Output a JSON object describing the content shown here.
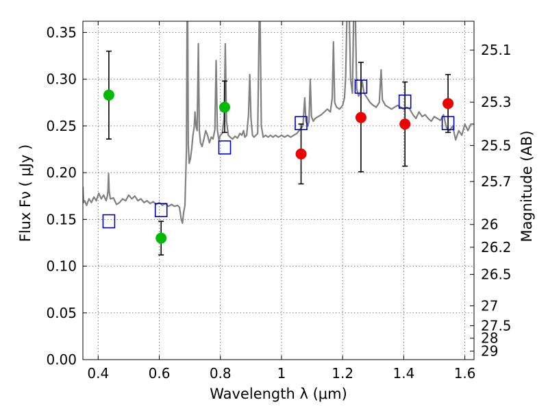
{
  "chart_data": {
    "type": "scatter",
    "xlabel": "Wavelength  λ (μm)",
    "ylabel": "Flux  Fν  ( μJy )",
    "ylabel_right": "Magnitude (AB)",
    "xlim": [
      0.35,
      1.63
    ],
    "ylim": [
      0.0,
      0.362
    ],
    "grid": true,
    "x_ticks": [
      {
        "value": 0.4,
        "label": "0.4"
      },
      {
        "value": 0.6,
        "label": "0.6"
      },
      {
        "value": 0.8,
        "label": "0.8"
      },
      {
        "value": 1.0,
        "label": "1"
      },
      {
        "value": 1.2,
        "label": "1.2"
      },
      {
        "value": 1.4,
        "label": "1.4"
      },
      {
        "value": 1.6,
        "label": "1.6"
      }
    ],
    "y_ticks": [
      {
        "value": 0.0,
        "label": "0.00"
      },
      {
        "value": 0.05,
        "label": "0.05"
      },
      {
        "value": 0.1,
        "label": "0.10"
      },
      {
        "value": 0.15,
        "label": "0.15"
      },
      {
        "value": 0.2,
        "label": "0.20"
      },
      {
        "value": 0.25,
        "label": "0.25"
      },
      {
        "value": 0.3,
        "label": "0.30"
      },
      {
        "value": 0.35,
        "label": "0.35"
      }
    ],
    "right_ticks": [
      {
        "value": 25.1,
        "label": "25.1"
      },
      {
        "value": 25.3,
        "label": "25.3"
      },
      {
        "value": 25.5,
        "label": "25.5"
      },
      {
        "value": 25.7,
        "label": "25.7"
      },
      {
        "value": 26.0,
        "label": "26"
      },
      {
        "value": 26.2,
        "label": "26.2"
      },
      {
        "value": 26.5,
        "label": "26.5"
      },
      {
        "value": 27.0,
        "label": "27"
      },
      {
        "value": 27.5,
        "label": "27.5"
      },
      {
        "value": 28.0,
        "label": "28"
      },
      {
        "value": 29.0,
        "label": "29"
      }
    ],
    "observed_points": [
      {
        "x": 0.435,
        "y": 0.283,
        "lo": 0.236,
        "hi": 0.33,
        "color": "#00bb00"
      },
      {
        "x": 0.606,
        "y": 0.13,
        "lo": 0.112,
        "hi": 0.148,
        "color": "#00bb00"
      },
      {
        "x": 0.814,
        "y": 0.27,
        "lo": 0.243,
        "hi": 0.298,
        "color": "#00bb00"
      },
      {
        "x": 1.064,
        "y": 0.22,
        "lo": 0.188,
        "hi": 0.252,
        "color": "#ee0000"
      },
      {
        "x": 1.26,
        "y": 0.259,
        "lo": 0.201,
        "hi": 0.318,
        "color": "#ee0000"
      },
      {
        "x": 1.404,
        "y": 0.252,
        "lo": 0.207,
        "hi": 0.297,
        "color": "#ee0000"
      },
      {
        "x": 1.545,
        "y": 0.274,
        "lo": 0.243,
        "hi": 0.305,
        "color": "#ee0000"
      }
    ],
    "model_points": [
      {
        "x": 0.435,
        "y": 0.148
      },
      {
        "x": 0.606,
        "y": 0.16
      },
      {
        "x": 0.814,
        "y": 0.227
      },
      {
        "x": 1.064,
        "y": 0.253
      },
      {
        "x": 1.26,
        "y": 0.292
      },
      {
        "x": 1.404,
        "y": 0.276
      },
      {
        "x": 1.545,
        "y": 0.253
      }
    ],
    "spectrum": {
      "color": "#808080",
      "points": [
        [
          0.35,
          0.185
        ],
        [
          0.352,
          0.168
        ],
        [
          0.356,
          0.17
        ],
        [
          0.362,
          0.165
        ],
        [
          0.37,
          0.172
        ],
        [
          0.378,
          0.168
        ],
        [
          0.386,
          0.174
        ],
        [
          0.394,
          0.17
        ],
        [
          0.402,
          0.178
        ],
        [
          0.41,
          0.172
        ],
        [
          0.418,
          0.176
        ],
        [
          0.426,
          0.17
        ],
        [
          0.43,
          0.175
        ],
        [
          0.432,
          0.18
        ],
        [
          0.434,
          0.199
        ],
        [
          0.436,
          0.18
        ],
        [
          0.44,
          0.172
        ],
        [
          0.45,
          0.173
        ],
        [
          0.46,
          0.166
        ],
        [
          0.47,
          0.168
        ],
        [
          0.48,
          0.172
        ],
        [
          0.49,
          0.17
        ],
        [
          0.5,
          0.176
        ],
        [
          0.51,
          0.172
        ],
        [
          0.52,
          0.175
        ],
        [
          0.53,
          0.17
        ],
        [
          0.54,
          0.172
        ],
        [
          0.55,
          0.168
        ],
        [
          0.56,
          0.17
        ],
        [
          0.57,
          0.167
        ],
        [
          0.58,
          0.169
        ],
        [
          0.59,
          0.166
        ],
        [
          0.6,
          0.168
        ],
        [
          0.61,
          0.165
        ],
        [
          0.62,
          0.167
        ],
        [
          0.63,
          0.164
        ],
        [
          0.64,
          0.166
        ],
        [
          0.65,
          0.164
        ],
        [
          0.66,
          0.165
        ],
        [
          0.666,
          0.163
        ],
        [
          0.672,
          0.15
        ],
        [
          0.676,
          0.146
        ],
        [
          0.68,
          0.158
        ],
        [
          0.684,
          0.165
        ],
        [
          0.687,
          0.2
        ],
        [
          0.689,
          0.225
        ],
        [
          0.691,
          0.365
        ],
        [
          0.693,
          0.365
        ],
        [
          0.695,
          0.23
        ],
        [
          0.698,
          0.21
        ],
        [
          0.702,
          0.215
        ],
        [
          0.706,
          0.225
        ],
        [
          0.71,
          0.24
        ],
        [
          0.714,
          0.248
        ],
        [
          0.717,
          0.265
        ],
        [
          0.72,
          0.25
        ],
        [
          0.724,
          0.245
        ],
        [
          0.728,
          0.338
        ],
        [
          0.731,
          0.245
        ],
        [
          0.735,
          0.232
        ],
        [
          0.74,
          0.228
        ],
        [
          0.746,
          0.236
        ],
        [
          0.752,
          0.245
        ],
        [
          0.758,
          0.24
        ],
        [
          0.764,
          0.232
        ],
        [
          0.77,
          0.238
        ],
        [
          0.776,
          0.236
        ],
        [
          0.782,
          0.246
        ],
        [
          0.786,
          0.32
        ],
        [
          0.79,
          0.246
        ],
        [
          0.795,
          0.235
        ],
        [
          0.8,
          0.24
        ],
        [
          0.806,
          0.242
        ],
        [
          0.812,
          0.258
        ],
        [
          0.816,
          0.338
        ],
        [
          0.82,
          0.255
        ],
        [
          0.826,
          0.24
        ],
        [
          0.832,
          0.238
        ],
        [
          0.84,
          0.236
        ],
        [
          0.848,
          0.239
        ],
        [
          0.856,
          0.237
        ],
        [
          0.864,
          0.242
        ],
        [
          0.87,
          0.24
        ],
        [
          0.876,
          0.245
        ],
        [
          0.88,
          0.238
        ],
        [
          0.886,
          0.24
        ],
        [
          0.892,
          0.262
        ],
        [
          0.896,
          0.305
        ],
        [
          0.9,
          0.258
        ],
        [
          0.905,
          0.24
        ],
        [
          0.91,
          0.238
        ],
        [
          0.916,
          0.24
        ],
        [
          0.922,
          0.242
        ],
        [
          0.927,
          0.365
        ],
        [
          0.93,
          0.365
        ],
        [
          0.934,
          0.25
        ],
        [
          0.94,
          0.238
        ],
        [
          0.948,
          0.24
        ],
        [
          0.956,
          0.238
        ],
        [
          0.964,
          0.24
        ],
        [
          0.972,
          0.238
        ],
        [
          0.98,
          0.24
        ],
        [
          0.99,
          0.238
        ],
        [
          1.0,
          0.24
        ],
        [
          1.01,
          0.238
        ],
        [
          1.02,
          0.24
        ],
        [
          1.03,
          0.238
        ],
        [
          1.04,
          0.24
        ],
        [
          1.05,
          0.242
        ],
        [
          1.06,
          0.246
        ],
        [
          1.07,
          0.25
        ],
        [
          1.076,
          0.28
        ],
        [
          1.08,
          0.255
        ],
        [
          1.086,
          0.25
        ],
        [
          1.09,
          0.255
        ],
        [
          1.094,
          0.3
        ],
        [
          1.098,
          0.26
        ],
        [
          1.104,
          0.255
        ],
        [
          1.11,
          0.258
        ],
        [
          1.12,
          0.26
        ],
        [
          1.13,
          0.262
        ],
        [
          1.14,
          0.265
        ],
        [
          1.15,
          0.268
        ],
        [
          1.16,
          0.265
        ],
        [
          1.166,
          0.28
        ],
        [
          1.17,
          0.34
        ],
        [
          1.174,
          0.275
        ],
        [
          1.18,
          0.27
        ],
        [
          1.19,
          0.268
        ],
        [
          1.2,
          0.272
        ],
        [
          1.206,
          0.28
        ],
        [
          1.21,
          0.302
        ],
        [
          1.214,
          0.365
        ],
        [
          1.222,
          0.365
        ],
        [
          1.226,
          0.3
        ],
        [
          1.232,
          0.285
        ],
        [
          1.236,
          0.365
        ],
        [
          1.242,
          0.365
        ],
        [
          1.246,
          0.29
        ],
        [
          1.252,
          0.282
        ],
        [
          1.258,
          0.285
        ],
        [
          1.264,
          0.298
        ],
        [
          1.27,
          0.285
        ],
        [
          1.28,
          0.28
        ],
        [
          1.29,
          0.275
        ],
        [
          1.3,
          0.272
        ],
        [
          1.31,
          0.27
        ],
        [
          1.32,
          0.275
        ],
        [
          1.326,
          0.31
        ],
        [
          1.33,
          0.278
        ],
        [
          1.34,
          0.272
        ],
        [
          1.35,
          0.27
        ],
        [
          1.36,
          0.268
        ],
        [
          1.37,
          0.27
        ],
        [
          1.38,
          0.272
        ],
        [
          1.39,
          0.27
        ],
        [
          1.4,
          0.268
        ],
        [
          1.41,
          0.27
        ],
        [
          1.42,
          0.268
        ],
        [
          1.43,
          0.262
        ],
        [
          1.44,
          0.258
        ],
        [
          1.45,
          0.265
        ],
        [
          1.46,
          0.26
        ],
        [
          1.47,
          0.262
        ],
        [
          1.48,
          0.258
        ],
        [
          1.49,
          0.255
        ],
        [
          1.5,
          0.26
        ],
        [
          1.51,
          0.258
        ],
        [
          1.52,
          0.256
        ],
        [
          1.53,
          0.262
        ],
        [
          1.54,
          0.248
        ],
        [
          1.55,
          0.245
        ],
        [
          1.56,
          0.25
        ],
        [
          1.57,
          0.235
        ],
        [
          1.58,
          0.245
        ],
        [
          1.59,
          0.24
        ],
        [
          1.6,
          0.252
        ],
        [
          1.61,
          0.245
        ],
        [
          1.62,
          0.252
        ],
        [
          1.63,
          0.252
        ]
      ]
    }
  }
}
